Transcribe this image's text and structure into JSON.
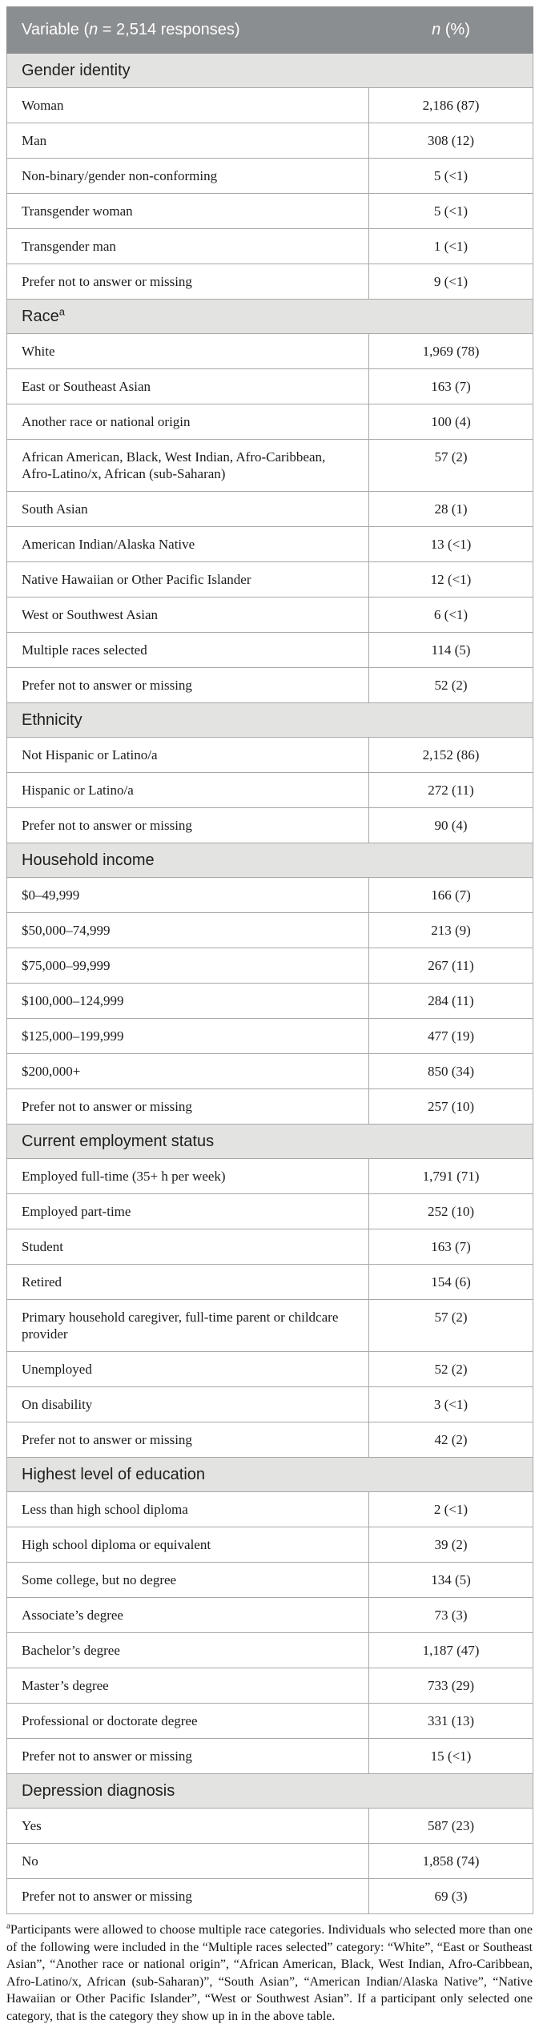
{
  "colors": {
    "header_bg": "#8b8e90",
    "header_text": "#ffffff",
    "header_divider": "#a6a9ab",
    "section_bg": "#e3e3e1",
    "border": "#a8a8a8",
    "text": "#1b1b1b"
  },
  "header": {
    "variable_prefix": "Variable (",
    "variable_n": "n",
    "variable_suffix": " = 2,514 responses)",
    "value_n": "n",
    "value_suffix": " (%)"
  },
  "sections": [
    {
      "title": "Gender identity",
      "rows": [
        {
          "label": "Woman",
          "value": "2,186 (87)"
        },
        {
          "label": "Man",
          "value": "308 (12)"
        },
        {
          "label": "Non-binary/gender non-conforming",
          "value": "5 (<1)"
        },
        {
          "label": "Transgender woman",
          "value": "5 (<1)"
        },
        {
          "label": "Transgender man",
          "value": "1 (<1)"
        },
        {
          "label": "Prefer not to answer or missing",
          "value": "9 (<1)"
        }
      ]
    },
    {
      "title": "Race",
      "sup": "a",
      "rows": [
        {
          "label": "White",
          "value": "1,969 (78)"
        },
        {
          "label": "East or Southeast Asian",
          "value": "163 (7)"
        },
        {
          "label": "Another race or national origin",
          "value": "100 (4)"
        },
        {
          "label": "African American, Black, West Indian, Afro-Caribbean, Afro-Latino/x, African (sub-Saharan)",
          "value": "57 (2)"
        },
        {
          "label": "South Asian",
          "value": "28 (1)"
        },
        {
          "label": "American Indian/Alaska Native",
          "value": "13 (<1)"
        },
        {
          "label": "Native Hawaiian or Other Pacific Islander",
          "value": "12 (<1)"
        },
        {
          "label": "West or Southwest Asian",
          "value": "6 (<1)"
        },
        {
          "label": "Multiple races selected",
          "value": "114 (5)"
        },
        {
          "label": "Prefer not to answer or missing",
          "value": "52 (2)"
        }
      ]
    },
    {
      "title": "Ethnicity",
      "rows": [
        {
          "label": "Not Hispanic or Latino/a",
          "value": "2,152 (86)"
        },
        {
          "label": "Hispanic or Latino/a",
          "value": "272 (11)"
        },
        {
          "label": "Prefer not to answer or missing",
          "value": "90 (4)"
        }
      ]
    },
    {
      "title": "Household income",
      "rows": [
        {
          "label": "$0–49,999",
          "value": "166 (7)"
        },
        {
          "label": "$50,000–74,999",
          "value": "213 (9)"
        },
        {
          "label": "$75,000–99,999",
          "value": "267 (11)"
        },
        {
          "label": "$100,000–124,999",
          "value": "284 (11)"
        },
        {
          "label": "$125,000–199,999",
          "value": "477 (19)"
        },
        {
          "label": "$200,000+",
          "value": "850 (34)"
        },
        {
          "label": "Prefer not to answer or missing",
          "value": "257 (10)"
        }
      ]
    },
    {
      "title": "Current employment status",
      "rows": [
        {
          "label": "Employed full-time (35+ h per week)",
          "value": "1,791 (71)"
        },
        {
          "label": "Employed part-time",
          "value": "252 (10)"
        },
        {
          "label": "Student",
          "value": "163 (7)"
        },
        {
          "label": "Retired",
          "value": "154 (6)"
        },
        {
          "label": "Primary household caregiver, full-time parent or childcare provider",
          "value": "57 (2)"
        },
        {
          "label": "Unemployed",
          "value": "52 (2)"
        },
        {
          "label": "On disability",
          "value": "3 (<1)"
        },
        {
          "label": "Prefer not to answer or missing",
          "value": "42 (2)"
        }
      ]
    },
    {
      "title": "Highest level of education",
      "rows": [
        {
          "label": "Less than high school diploma",
          "value": "2 (<1)"
        },
        {
          "label": "High school diploma or equivalent",
          "value": "39 (2)"
        },
        {
          "label": "Some college, but no degree",
          "value": "134 (5)"
        },
        {
          "label": "Associate’s degree",
          "value": "73 (3)"
        },
        {
          "label": "Bachelor’s degree",
          "value": "1,187 (47)"
        },
        {
          "label": "Master’s degree",
          "value": "733 (29)"
        },
        {
          "label": "Professional or doctorate degree",
          "value": "331 (13)"
        },
        {
          "label": "Prefer not to answer or missing",
          "value": "15 (<1)"
        }
      ]
    },
    {
      "title": "Depression diagnosis",
      "rows": [
        {
          "label": "Yes",
          "value": "587 (23)"
        },
        {
          "label": "No",
          "value": "1,858 (74)"
        },
        {
          "label": "Prefer not to answer or missing",
          "value": "69 (3)"
        }
      ]
    }
  ],
  "footnote": {
    "sup": "a",
    "text": "Participants were allowed to choose multiple race categories. Individuals who selected more than one of the following were included in the “Multiple races selected” category: “White”, “East or Southeast Asian”, “Another race or national origin”, “African American, Black, West Indian, Afro-Caribbean, Afro-Latino/x, African (sub-Saharan)”, “South Asian”, “American Indian/Alaska Native”, “Native Hawaiian or Other Pacific Islander”, “West or Southwest Asian”. If a participant only selected one category, that is the category they show up in in the above table."
  }
}
